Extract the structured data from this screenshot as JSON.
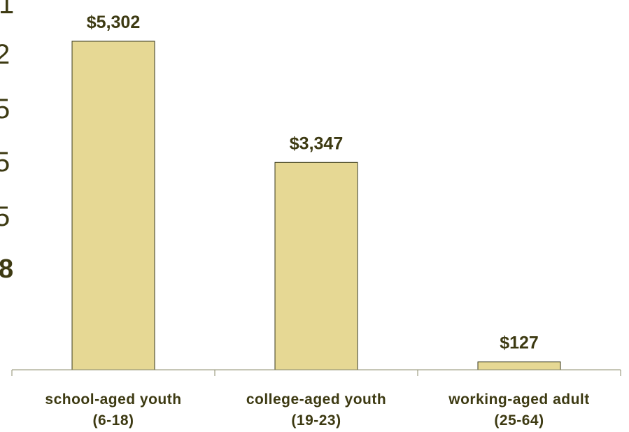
{
  "chart_data": {
    "type": "bar",
    "title": "",
    "xlabel": "",
    "ylabel": "",
    "categories": [
      [
        "school-aged youth",
        "(6-18)"
      ],
      [
        "college-aged youth",
        "(19-23)"
      ],
      [
        "working-aged adult",
        "(25-64)"
      ]
    ],
    "values": [
      5302,
      3347,
      127
    ],
    "data_labels": [
      "$5,302",
      "$3,347",
      "$127"
    ],
    "ylim": [
      0,
      5302
    ],
    "grid": false,
    "legend": "none"
  },
  "left_edge_fragments": [
    "1",
    "2",
    "5",
    "5",
    "5",
    "8"
  ],
  "colors": {
    "bar_fill": "#E6D894",
    "bar_stroke": "#3A3A1E",
    "axis": "#8C8C6E",
    "label_text": "#3D3A12"
  }
}
